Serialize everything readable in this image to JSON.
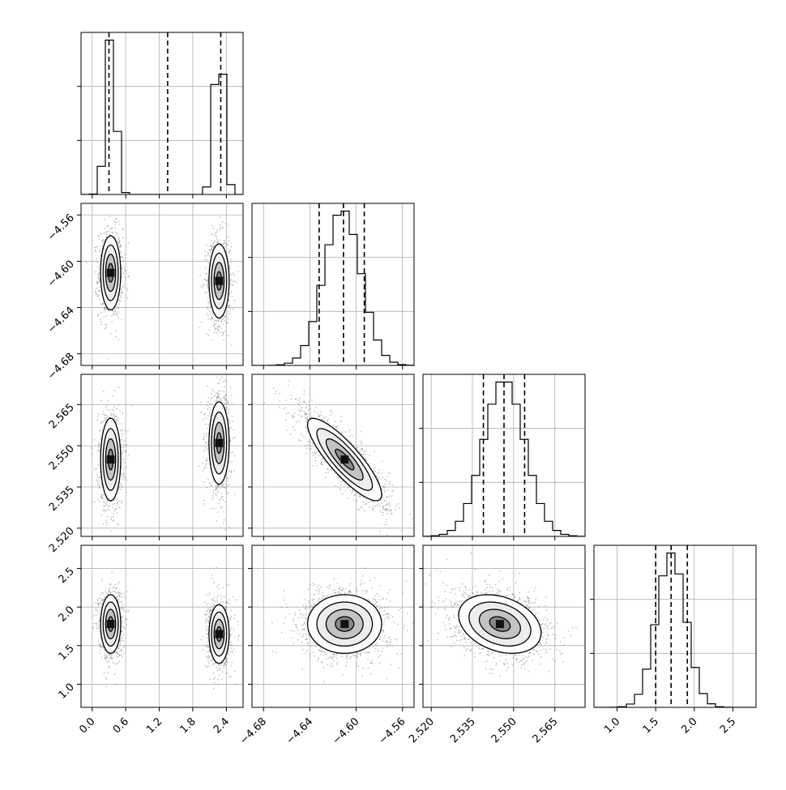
{
  "chart_data": {
    "type": "corner",
    "parameters": [
      {
        "index": 0,
        "range": [
          -0.2,
          2.7
        ],
        "ticks": [
          0.0,
          0.6,
          1.2,
          1.8,
          2.4
        ],
        "tick_labels": [
          "0.0",
          "0.6",
          "1.2",
          "1.8",
          "2.4"
        ],
        "quantiles": [
          0.3,
          1.35,
          2.3
        ],
        "modes": [
          {
            "mean": 0.33,
            "sd": 0.09,
            "weight": 0.5
          },
          {
            "mean": 2.27,
            "sd": 0.09,
            "weight": 0.5
          }
        ]
      },
      {
        "index": 1,
        "range": [
          -4.69,
          -4.55
        ],
        "ticks": [
          -4.68,
          -4.64,
          -4.6,
          -4.56
        ],
        "tick_labels": [
          "−4.68",
          "−4.64",
          "−4.60",
          "−4.56"
        ],
        "quantiles": [
          -4.632,
          -4.611,
          -4.593
        ],
        "modes": [
          {
            "mean": -4.612,
            "sd": 0.016,
            "weight": 1
          }
        ]
      },
      {
        "index": 2,
        "range": [
          2.517,
          2.576
        ],
        "ticks": [
          2.52,
          2.535,
          2.55,
          2.565
        ],
        "tick_labels": [
          "2.520",
          "2.535",
          "2.550",
          "2.565"
        ],
        "quantiles": [
          2.539,
          2.5465,
          2.554
        ],
        "modes": [
          {
            "mean": 2.5465,
            "sd": 0.0075,
            "weight": 1
          }
        ]
      },
      {
        "index": 3,
        "range": [
          0.7,
          2.8
        ],
        "ticks": [
          1.0,
          1.5,
          2.0,
          2.5
        ],
        "tick_labels": [
          "1.0",
          "1.5",
          "2.0",
          "2.5"
        ],
        "quantiles": [
          1.5,
          1.7,
          1.91
        ],
        "modes": [
          {
            "mean": 1.7,
            "sd": 0.19,
            "weight": 1
          }
        ]
      }
    ],
    "correlations": [
      {
        "i": 1,
        "j": 2,
        "rho": -0.85
      },
      {
        "i": 2,
        "j": 3,
        "rho": -0.3
      }
    ],
    "mode_offsets": [
      {
        "param": 1,
        "mode0": -4.61,
        "mode1": -4.617
      },
      {
        "param": 2,
        "mode0": 2.545,
        "mode1": 2.551
      },
      {
        "param": 3,
        "mode0": 1.78,
        "mode1": 1.65
      }
    ],
    "contour_levels": [
      0.5,
      1.0,
      1.5,
      2.0
    ],
    "histogram_bins": 20,
    "grid": true,
    "colors": {
      "line": "#000000",
      "grid": "#b0b0b0",
      "scatter": "#555555"
    }
  }
}
